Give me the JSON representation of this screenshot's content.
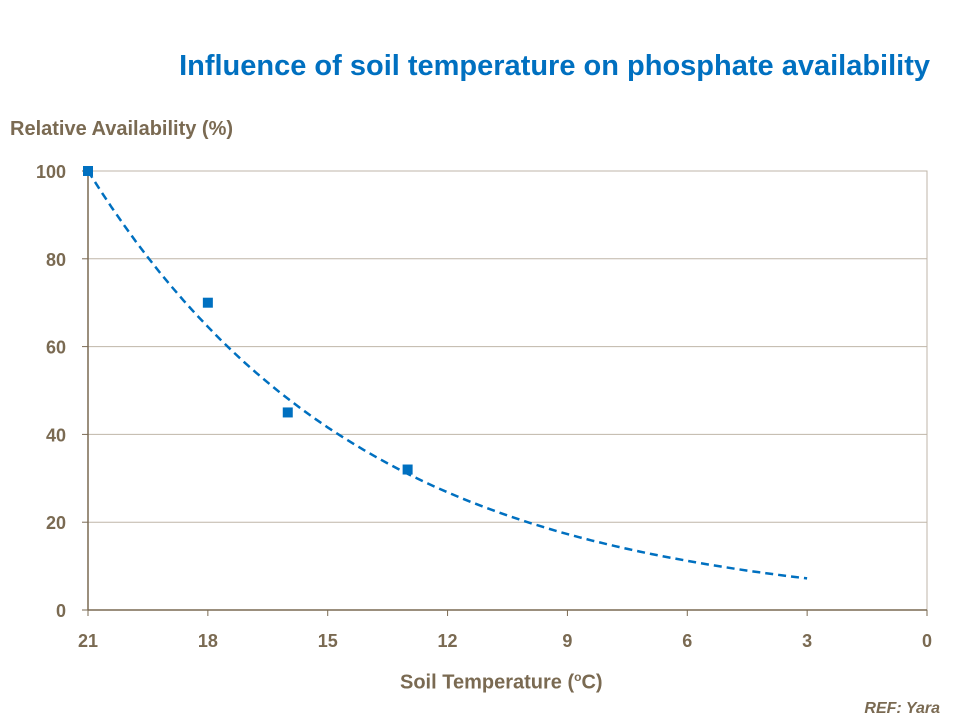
{
  "chart_data": {
    "type": "scatter",
    "title": "Influence of soil temperature on phosphate availability",
    "ylabel": "Relative Availability (%)",
    "xlabel": "Soil Temperature (",
    "xlabel_sup": "o",
    "xlabel_tail": "C)",
    "xlim": [
      21,
      0
    ],
    "x_reversed": true,
    "ylim": [
      0,
      100
    ],
    "xticks": [
      21,
      18,
      15,
      12,
      9,
      6,
      3,
      0
    ],
    "yticks": [
      0,
      20,
      40,
      60,
      80,
      100
    ],
    "grid": "horizontal",
    "points": {
      "x": [
        21,
        18,
        16,
        13
      ],
      "y": [
        100,
        70,
        45,
        32
      ]
    },
    "trendline": {
      "type": "exponential",
      "style": "dashed",
      "x": [
        21,
        18,
        15,
        12,
        9,
        6,
        3
      ],
      "y": [
        100,
        64.5,
        41.6,
        26.8,
        17.3,
        11.2,
        7.2
      ]
    },
    "colors": {
      "series": "#0070C0",
      "text": "#7A6A52",
      "grid": "#BFB6A8",
      "axis": "#7A6A52"
    }
  },
  "footer": {
    "ref": "REF: Yara"
  }
}
